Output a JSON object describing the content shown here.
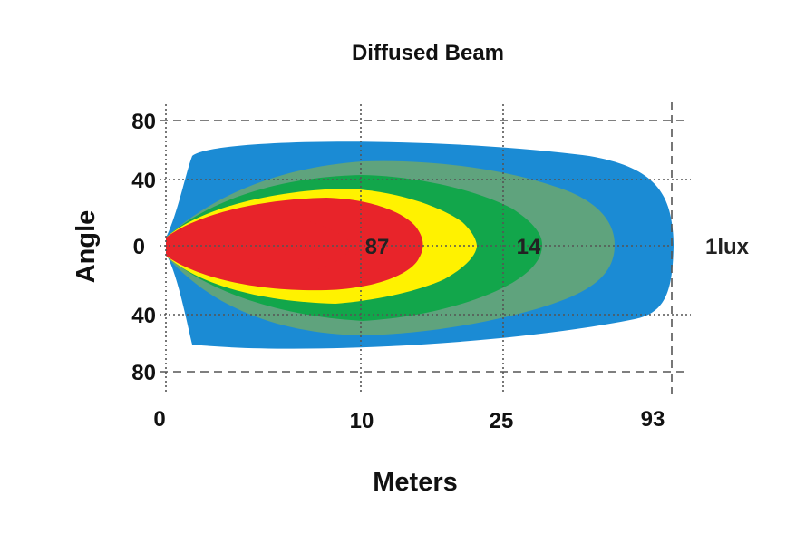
{
  "chart_data": {
    "type": "area",
    "title": "Diffused Beam",
    "xlabel": "Meters",
    "ylabel": "Angle",
    "x_ticks": [
      "0",
      "10",
      "25",
      "93"
    ],
    "y_ticks": [
      "80",
      "40",
      "0",
      "40",
      "80"
    ],
    "y_tick_values": [
      80,
      40,
      0,
      -40,
      -80
    ],
    "series": [
      {
        "color": "#8fd3f4",
        "reach": "93"
      },
      {
        "color": "#1b8bd4",
        "reach": "25"
      },
      {
        "color": "#5fa37d",
        "reach": "25"
      },
      {
        "color": "#12a64b",
        "reach": "10"
      },
      {
        "color": "#fff200",
        "reach": "10"
      },
      {
        "color": "#e8242a",
        "reach": "10"
      }
    ],
    "annotations": [
      "87",
      "14",
      "1lux"
    ]
  }
}
